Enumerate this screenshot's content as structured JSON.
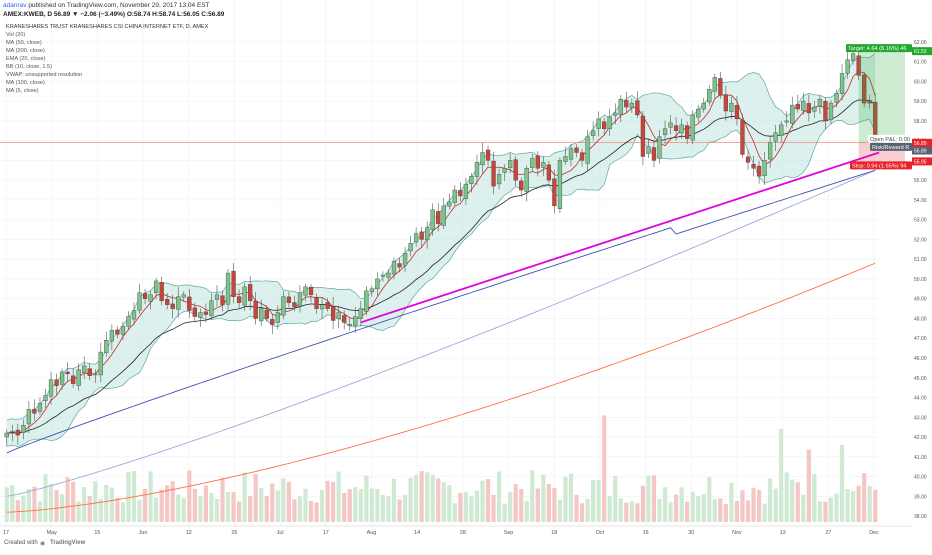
{
  "header": {
    "author": "adanrav",
    "published": "published on TradingView.com, November 29, 2017 13:04 EST",
    "quote": "AMEX:KWEB, D  56.89  ▼ −2.06 (−3.49%)  O:58.74  H:58.74  L:56.05  C:56.89",
    "title": "KRANESHARES TRUST KRANESHARES CSI CHINA INTERNET ETF, D, AMEX"
  },
  "indicators": [
    "Vol (20)",
    "MA (50, close)",
    "MA (200, close)",
    "EMA (20, close)",
    "BB (10, close, 1.5)",
    "VWAP: unsupported resolution",
    "MA (100, close)",
    "MA (5, close)"
  ],
  "footer": {
    "created_with": "Created with",
    "brand": "TradingView"
  },
  "colors": {
    "up": "#26a69a",
    "down": "#ef5350",
    "up_fill": "#7cc48b",
    "down_fill": "#c9443b",
    "bb_fill": "#bfe3df",
    "bb_line": "#5fa89e",
    "ma50": "#3f51b5",
    "ma100": "#9fa8da",
    "ma200": "#ff7043",
    "ema20": "#222222",
    "ma5": "#c62828",
    "trendline": "#e000e0",
    "target": "#22a82e",
    "stop": "#e8212b",
    "hline": "#f48a80"
  },
  "chart_data": {
    "type": "candlestick",
    "symbol": "AMEX:KWEB",
    "interval": "D",
    "ylim": [
      37.7,
      62.6
    ],
    "price_ticks": [
      "62.00",
      "61.00",
      "60.00",
      "59.00",
      "58.00",
      "57.00",
      "56.00",
      "55.00",
      "54.00",
      "53.00",
      "52.00",
      "51.00",
      "50.00",
      "49.00",
      "48.00",
      "47.00",
      "46.00",
      "45.00",
      "44.00",
      "43.00",
      "42.00",
      "41.00",
      "40.00",
      "39.00",
      "38.00"
    ],
    "x_labels": [
      "17",
      "May",
      "15",
      "Jun",
      "12",
      "26",
      "Jul",
      "17",
      "Aug",
      "14",
      "28",
      "Sep",
      "18",
      "Oct",
      "16",
      "30",
      "Nov",
      "13",
      "27",
      "Dec"
    ],
    "price_labels": {
      "target": "61.53",
      "last": "56.89",
      "stop": "55.95",
      "position": "56.89"
    },
    "position_tool": {
      "target_label": "Target: 4.64 (8.16%) 46",
      "pnl_label": "Open P&L: 0.00",
      "rr_label": "Risk/Reward R",
      "stop_label": "Stop: 0.94 (1.65%) 94",
      "entry": 56.89,
      "target": 61.53,
      "stop": 55.95
    },
    "trendline": {
      "from": {
        "x": "Jul 3",
        "y": 47.8
      },
      "to": {
        "x": "Nov 28",
        "y": 56.4
      }
    },
    "horizontal_line": 56.9,
    "series": [
      {
        "name": "MA (5, close)",
        "kind": "ma5"
      },
      {
        "name": "EMA (20, close)",
        "kind": "ema20"
      },
      {
        "name": "MA (50, close)",
        "kind": "ma50"
      },
      {
        "name": "MA (100, close)",
        "kind": "ma100"
      },
      {
        "name": "MA (200, close)",
        "kind": "ma200"
      },
      {
        "name": "BB (10, close, 1.5)",
        "kind": "bb"
      },
      {
        "name": "Vol (20)",
        "kind": "volume"
      }
    ],
    "closes": [
      42.2,
      42.3,
      42.1,
      42.6,
      43.4,
      43.2,
      43.7,
      44.1,
      44.9,
      44.6,
      45.3,
      45.2,
      44.7,
      45.4,
      45.6,
      45.1,
      45.2,
      46.3,
      46.9,
      47.4,
      47.2,
      47.6,
      48.1,
      48.4,
      49.3,
      49.0,
      49.2,
      49.9,
      48.9,
      48.7,
      48.5,
      49.1,
      49.2,
      48.4,
      48.1,
      48.3,
      48.2,
      48.9,
      49.2,
      48.7,
      50.3,
      49.1,
      48.8,
      49.6,
      48.9,
      48.0,
      48.5,
      48.0,
      47.7,
      48.3,
      49.1,
      48.8,
      48.6,
      49.3,
      49.6,
      49.2,
      48.5,
      48.7,
      48.5,
      47.9,
      48.3,
      47.8,
      47.7,
      48.1,
      48.5,
      49.4,
      49.5,
      50.0,
      50.2,
      50.3,
      50.9,
      50.6,
      51.3,
      51.8,
      52.3,
      52.0,
      52.6,
      53.5,
      52.8,
      53.7,
      53.9,
      54.5,
      54.2,
      54.8,
      55.2,
      55.9,
      56.4,
      56.0,
      54.7,
      55.3,
      55.6,
      56.0,
      55.0,
      54.5,
      55.6,
      56.1,
      55.6,
      55.9,
      55.0,
      53.7,
      56.0,
      56.2,
      56.6,
      56.4,
      56.0,
      57.2,
      57.5,
      58.1,
      57.6,
      58.2,
      58.4,
      59.1,
      58.7,
      58.9,
      58.3,
      56.2,
      56.7,
      56.0,
      57.2,
      57.6,
      57.9,
      57.5,
      57.8,
      57.1,
      58.3,
      58.6,
      58.9,
      59.6,
      60.2,
      59.3,
      58.5,
      58.9,
      58.1,
      56.3,
      55.9,
      55.6,
      55.2,
      56.0,
      56.9,
      57.4,
      57.8,
      58.0,
      58.8,
      58.6,
      59.0,
      58.4,
      58.7,
      59.1,
      58.0,
      58.9,
      59.4,
      60.4,
      61.1,
      61.4,
      60.3,
      58.9,
      58.9,
      56.9
    ],
    "volume_ticks": [
      "44.00",
      "43.00",
      "42.00",
      "41.00",
      "40.00",
      "39.00",
      "38.00"
    ]
  }
}
